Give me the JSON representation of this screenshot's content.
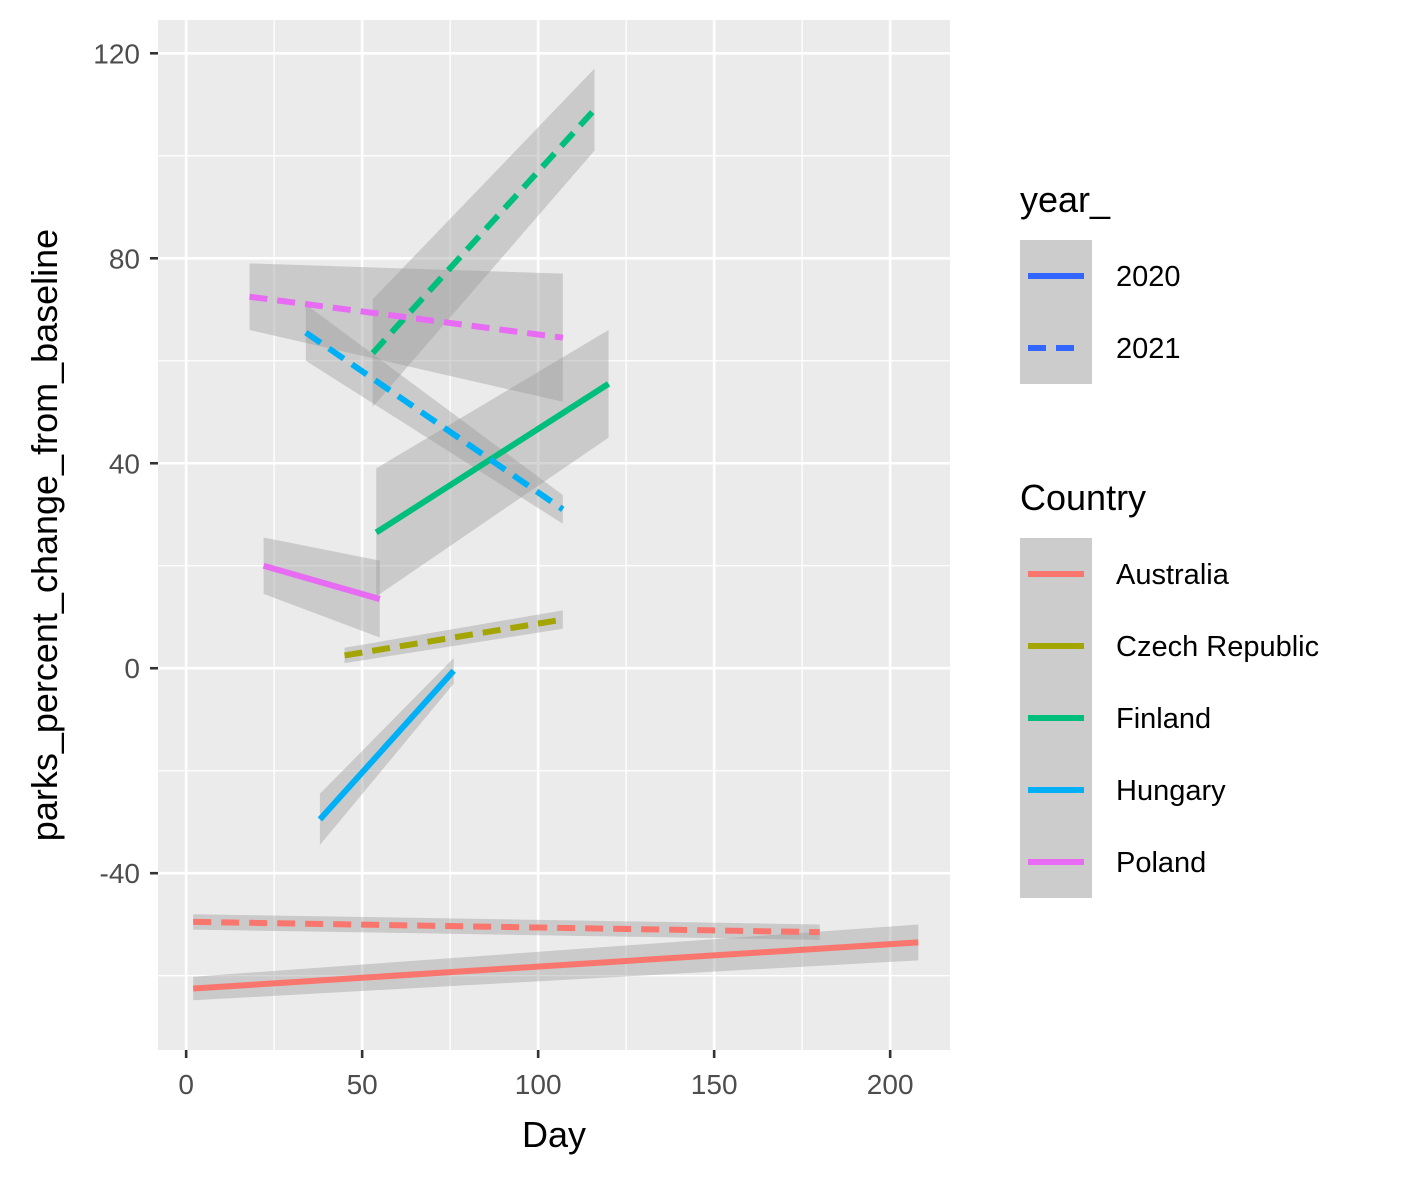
{
  "chart_data": {
    "type": "line",
    "title": "",
    "xlabel": "Day",
    "ylabel": "parks_percent_change_from_baseline",
    "xlim": [
      -8,
      217
    ],
    "ylim": [
      -74.5,
      126.5
    ],
    "x_ticks": [
      0,
      50,
      100,
      150,
      200
    ],
    "y_ticks": [
      -40,
      0,
      40,
      80,
      120
    ],
    "x_tick_labels": [
      "0",
      "50",
      "100",
      "150",
      "200"
    ],
    "y_tick_labels": [
      "-40",
      "0",
      "40",
      "80",
      "120"
    ],
    "grid": true,
    "panel_background": "#ebebeb",
    "legend_position": "right",
    "legends": [
      {
        "title": "year_",
        "entries": [
          {
            "label": "2020",
            "linetype": "solid"
          },
          {
            "label": "2021",
            "linetype": "dashed"
          }
        ],
        "key_color": "#3366ff"
      },
      {
        "title": "Country",
        "entries": [
          {
            "label": "Australia",
            "color": "#f8766d"
          },
          {
            "label": "Czech Republic",
            "color": "#a3a500"
          },
          {
            "label": "Finland",
            "color": "#00bf7d"
          },
          {
            "label": "Hungary",
            "color": "#00b0f6"
          },
          {
            "label": "Poland",
            "color": "#e76bf3"
          }
        ]
      }
    ],
    "series": [
      {
        "country": "Australia",
        "year": "2020",
        "linetype": "solid",
        "color": "#f8766d",
        "x": [
          2,
          208
        ],
        "y": [
          -62.5,
          -53.5
        ],
        "ribbon_half_width": [
          2.3,
          3.5
        ]
      },
      {
        "country": "Australia",
        "year": "2021",
        "linetype": "dashed",
        "color": "#f8766d",
        "x": [
          2,
          180
        ],
        "y": [
          -49.5,
          -51.5
        ],
        "ribbon_half_width": [
          1.5,
          1.5
        ]
      },
      {
        "country": "Czech Republic",
        "year": "2021",
        "linetype": "dashed",
        "color": "#a3a500",
        "x": [
          45,
          107
        ],
        "y": [
          2.5,
          9.5
        ],
        "ribbon_half_width": [
          1.5,
          1.8
        ]
      },
      {
        "country": "Finland",
        "year": "2020",
        "linetype": "solid",
        "color": "#00bf7d",
        "x": [
          54,
          120
        ],
        "y": [
          26.5,
          55.5
        ],
        "ribbon_half_width": [
          12.5,
          10.5
        ]
      },
      {
        "country": "Finland",
        "year": "2021",
        "linetype": "dashed",
        "color": "#00bf7d",
        "x": [
          53,
          116
        ],
        "y": [
          61.5,
          109
        ],
        "ribbon_half_width": [
          10.5,
          8
        ]
      },
      {
        "country": "Hungary",
        "year": "2020",
        "linetype": "solid",
        "color": "#00b0f6",
        "x": [
          38,
          76
        ],
        "y": [
          -29.5,
          -0.5
        ],
        "ribbon_half_width": [
          5,
          2.5
        ]
      },
      {
        "country": "Hungary",
        "year": "2021",
        "linetype": "dashed",
        "color": "#00b0f6",
        "x": [
          34,
          107
        ],
        "y": [
          65.5,
          31
        ],
        "ribbon_half_width": [
          5.5,
          2.8
        ]
      },
      {
        "country": "Poland",
        "year": "2020",
        "linetype": "solid",
        "color": "#e76bf3",
        "x": [
          22,
          55
        ],
        "y": [
          20,
          13.5
        ],
        "ribbon_half_width": [
          5.5,
          7.5
        ]
      },
      {
        "country": "Poland",
        "year": "2021",
        "linetype": "dashed",
        "color": "#e76bf3",
        "x": [
          18,
          107
        ],
        "y": [
          72.5,
          64.5
        ],
        "ribbon_half_width": [
          6.5,
          12.5
        ]
      }
    ]
  }
}
